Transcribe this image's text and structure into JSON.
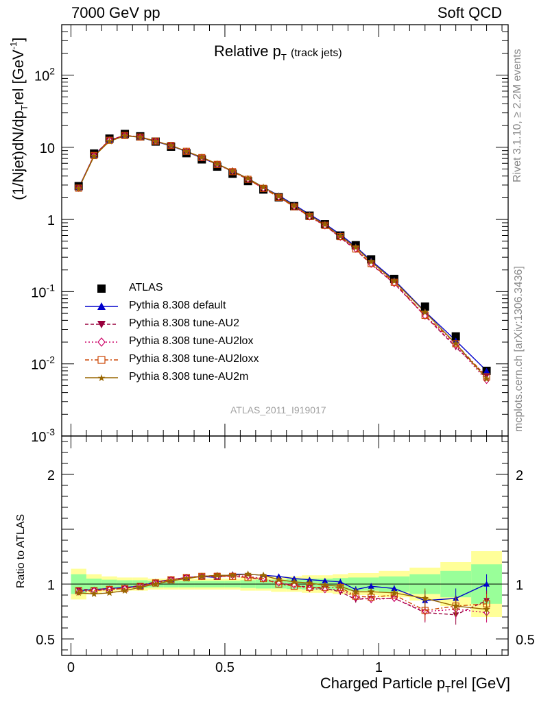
{
  "header": {
    "left": "7000 GeV pp",
    "right": "Soft QCD"
  },
  "side_labels": {
    "rivet": "Rivet 3.1.10, ≥ 2.2M events",
    "mcplots": "mcplots.cern.ch [arXiv:1306.3436]"
  },
  "chart_data": [
    {
      "type": "line",
      "title": "Relative pT (track jets)",
      "title_main": "Relative p",
      "title_sub": "T",
      "title_note": "(track jets)",
      "ylabel": "(1/Njet)dN/dp",
      "ylabel_sub": "T",
      "ylabel_rest": "rel [GeV",
      "ylabel_sup": "-1",
      "yscale": "log",
      "ylim": [
        0.001,
        500
      ],
      "xlim": [
        -0.03,
        1.42
      ],
      "ytick_labels": [
        "10^-3",
        "10^-2",
        "10^-1",
        "1",
        "10",
        "10^2"
      ],
      "watermark": "ATLAS_2011_I919017",
      "legend_position": "left-middle",
      "x": [
        0.025,
        0.075,
        0.125,
        0.175,
        0.225,
        0.275,
        0.325,
        0.375,
        0.425,
        0.475,
        0.525,
        0.575,
        0.625,
        0.675,
        0.725,
        0.775,
        0.825,
        0.875,
        0.925,
        0.975,
        1.05,
        1.15,
        1.25,
        1.35
      ],
      "series": [
        {
          "name": "ATLAS",
          "color": "#000000",
          "marker": "square",
          "values": [
            2.9,
            8.2,
            13.2,
            15.3,
            14.2,
            12.0,
            10.2,
            8.3,
            6.8,
            5.4,
            4.3,
            3.4,
            2.6,
            2.03,
            1.53,
            1.13,
            0.86,
            0.6,
            0.44,
            0.28,
            0.15,
            0.062,
            0.024,
            0.008
          ]
        },
        {
          "name": "Pythia 8.308 default",
          "color": "#0000cc",
          "marker": "triangle-up",
          "values": [
            2.74,
            7.7,
            12.5,
            14.6,
            13.8,
            12.0,
            10.5,
            8.7,
            7.1,
            5.8,
            4.7,
            3.7,
            2.8,
            2.15,
            1.6,
            1.18,
            0.87,
            0.62,
            0.42,
            0.27,
            0.145,
            0.053,
            0.021,
            0.008
          ]
        },
        {
          "name": "Pythia 8.308 tune-AU2",
          "color": "#99003d",
          "marker": "triangle-down",
          "values": [
            2.72,
            7.8,
            12.6,
            14.7,
            13.9,
            12.2,
            10.6,
            8.8,
            7.2,
            5.9,
            4.6,
            3.6,
            2.7,
            2.05,
            1.52,
            1.1,
            0.83,
            0.56,
            0.38,
            0.24,
            0.13,
            0.046,
            0.017,
            0.0068
          ]
        },
        {
          "name": "Pythia 8.308 tune-AU2lox",
          "color": "#cc0066",
          "marker": "diamond-open",
          "values": [
            2.71,
            7.7,
            12.6,
            14.6,
            13.9,
            12.1,
            10.6,
            8.8,
            7.2,
            5.8,
            4.7,
            3.6,
            2.7,
            2.05,
            1.51,
            1.09,
            0.82,
            0.57,
            0.39,
            0.24,
            0.13,
            0.046,
            0.018,
            0.0059
          ]
        },
        {
          "name": "Pythia 8.308 tune-AU2loxx",
          "color": "#cc4400",
          "marker": "square-open",
          "values": [
            2.72,
            7.7,
            12.5,
            14.6,
            13.9,
            12.2,
            10.6,
            8.8,
            7.2,
            5.8,
            4.6,
            3.6,
            2.7,
            2.03,
            1.5,
            1.1,
            0.83,
            0.58,
            0.39,
            0.245,
            0.135,
            0.047,
            0.019,
            0.0066
          ]
        },
        {
          "name": "Pythia 8.308 tune-AU2m",
          "color": "#996600",
          "marker": "star",
          "values": [
            2.67,
            7.5,
            12.1,
            14.4,
            13.8,
            12.1,
            10.6,
            8.8,
            7.3,
            5.9,
            4.7,
            3.7,
            2.8,
            2.1,
            1.55,
            1.14,
            0.85,
            0.59,
            0.41,
            0.26,
            0.14,
            0.052,
            0.019,
            0.0062
          ]
        }
      ]
    },
    {
      "type": "line",
      "ylabel": "Ratio to ATLAS",
      "xlabel": "Charged Particle p",
      "xlabel_sub": "T",
      "xlabel_rest": "rel [GeV]",
      "ylim": [
        0.35,
        2.35
      ],
      "xlim": [
        -0.03,
        1.42
      ],
      "xtick_labels": [
        "0",
        "0.5",
        "1"
      ],
      "ytick_labels": [
        "0.5",
        "1",
        "2"
      ],
      "x_edges": [
        0.0,
        0.05,
        0.1,
        0.15,
        0.2,
        0.25,
        0.3,
        0.35,
        0.4,
        0.45,
        0.5,
        0.55,
        0.6,
        0.65,
        0.7,
        0.75,
        0.8,
        0.85,
        0.9,
        0.95,
        1.0,
        1.1,
        1.2,
        1.3,
        1.4
      ],
      "band_yellow": [
        0.14,
        0.09,
        0.07,
        0.06,
        0.06,
        0.05,
        0.05,
        0.05,
        0.05,
        0.05,
        0.05,
        0.06,
        0.06,
        0.07,
        0.07,
        0.08,
        0.08,
        0.09,
        0.1,
        0.1,
        0.12,
        0.15,
        0.2,
        0.3,
        0.52
      ],
      "band_green": [
        0.09,
        0.05,
        0.04,
        0.035,
        0.035,
        0.03,
        0.03,
        0.03,
        0.03,
        0.03,
        0.03,
        0.035,
        0.04,
        0.04,
        0.045,
        0.05,
        0.05,
        0.055,
        0.06,
        0.06,
        0.07,
        0.09,
        0.12,
        0.18,
        0.22
      ],
      "x": [
        0.025,
        0.075,
        0.125,
        0.175,
        0.225,
        0.275,
        0.325,
        0.375,
        0.425,
        0.475,
        0.525,
        0.575,
        0.625,
        0.675,
        0.725,
        0.775,
        0.825,
        0.875,
        0.925,
        0.975,
        1.05,
        1.15,
        1.25,
        1.35
      ],
      "series": [
        {
          "name": "Pythia 8.308 default",
          "color": "#0000cc",
          "marker": "triangle-up",
          "values": [
            0.94,
            0.95,
            0.96,
            0.97,
            0.98,
            1.02,
            1.04,
            1.06,
            1.07,
            1.06,
            1.09,
            1.09,
            1.08,
            1.07,
            1.05,
            1.04,
            1.03,
            1.02,
            0.95,
            0.98,
            0.96,
            0.85,
            0.87,
            1.0
          ]
        },
        {
          "name": "Pythia 8.308 tune-AU2",
          "color": "#99003d",
          "marker": "triangle-down",
          "values": [
            0.95,
            0.95,
            0.96,
            0.96,
            0.99,
            1.02,
            1.04,
            1.06,
            1.07,
            1.08,
            1.07,
            1.06,
            1.04,
            1.01,
            0.99,
            0.97,
            0.96,
            0.93,
            0.86,
            0.87,
            0.87,
            0.74,
            0.72,
            0.85
          ]
        },
        {
          "name": "Pythia 8.308 tune-AU2lox",
          "color": "#cc0066",
          "marker": "diamond-open",
          "values": [
            0.93,
            0.94,
            0.95,
            0.96,
            0.98,
            1.01,
            1.04,
            1.06,
            1.07,
            1.07,
            1.08,
            1.07,
            1.05,
            1.01,
            0.99,
            0.96,
            0.95,
            0.95,
            0.88,
            0.86,
            0.87,
            0.75,
            0.77,
            0.74
          ]
        },
        {
          "name": "Pythia 8.308 tune-AU2loxx",
          "color": "#cc4400",
          "marker": "square-open",
          "values": [
            0.94,
            0.94,
            0.95,
            0.96,
            0.98,
            1.01,
            1.04,
            1.06,
            1.07,
            1.07,
            1.07,
            1.06,
            1.05,
            1.0,
            0.98,
            0.97,
            0.97,
            0.97,
            0.89,
            0.88,
            0.9,
            0.76,
            0.8,
            0.82
          ]
        },
        {
          "name": "Pythia 8.308 tune-AU2m",
          "color": "#996600",
          "marker": "star",
          "values": [
            0.92,
            0.91,
            0.92,
            0.94,
            0.97,
            1.0,
            1.03,
            1.05,
            1.07,
            1.08,
            1.08,
            1.09,
            1.08,
            1.04,
            1.02,
            1.01,
            0.99,
            0.98,
            0.93,
            0.93,
            0.92,
            0.87,
            0.8,
            0.77
          ]
        }
      ]
    }
  ]
}
